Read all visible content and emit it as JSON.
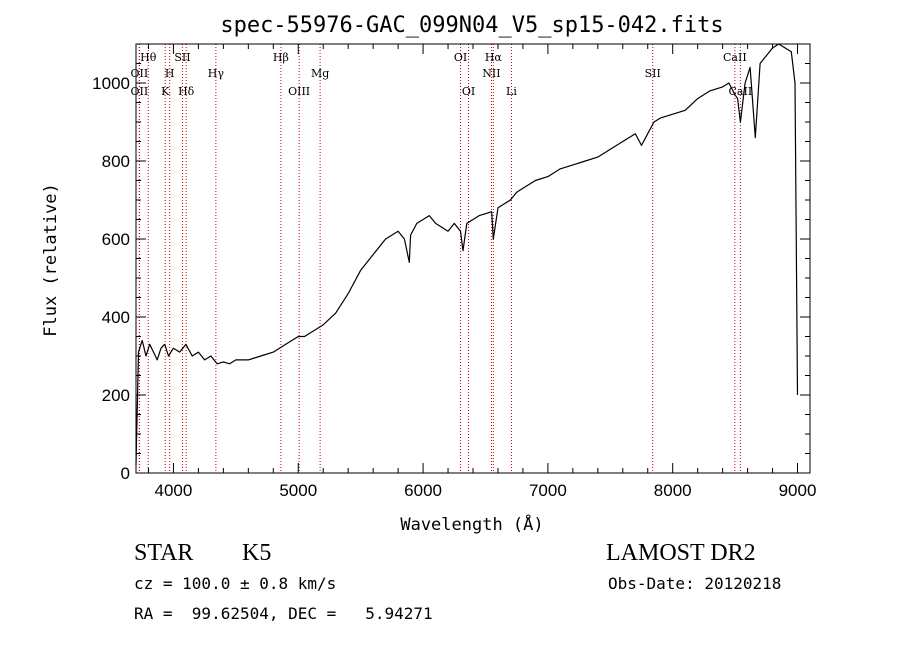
{
  "chart_data": {
    "type": "line",
    "title": "spec-55976-GAC_099N04_V5_sp15-042.fits",
    "xlabel": "Wavelength (Å)",
    "ylabel": "Flux (relative)",
    "xlim": [
      3700,
      9100
    ],
    "ylim": [
      0,
      1100
    ],
    "xticks": [
      4000,
      5000,
      6000,
      7000,
      8000,
      9000
    ],
    "yticks": [
      0,
      200,
      400,
      600,
      800,
      1000
    ],
    "line_color": "#000000",
    "marker_color": "#c00000",
    "series": [
      {
        "x": [
          3700,
          3720,
          3750,
          3780,
          3810,
          3840,
          3870,
          3900,
          3930,
          3960,
          4000,
          4050,
          4100,
          4150,
          4200,
          4250,
          4300,
          4350,
          4400,
          4450,
          4500,
          4600,
          4700,
          4800,
          4850,
          4900,
          4950,
          5000,
          5050,
          5100,
          5150,
          5200,
          5300,
          5400,
          5500,
          5600,
          5700,
          5800,
          5850,
          5890,
          5900,
          5950,
          6000,
          6050,
          6100,
          6150,
          6200,
          6250,
          6300,
          6320,
          6350,
          6400,
          6450,
          6500,
          6550,
          6563,
          6600,
          6650,
          6700,
          6750,
          6800,
          6900,
          7000,
          7100,
          7200,
          7300,
          7400,
          7500,
          7600,
          7650,
          7700,
          7750,
          7800,
          7850,
          7900,
          8000,
          8100,
          8200,
          8300,
          8400,
          8450,
          8498,
          8520,
          8542,
          8580,
          8620,
          8662,
          8700,
          8750,
          8800,
          8850,
          8900,
          8950,
          8980,
          9000
        ],
        "y": [
          20,
          310,
          340,
          300,
          330,
          310,
          290,
          320,
          330,
          300,
          320,
          310,
          330,
          300,
          310,
          290,
          300,
          280,
          285,
          280,
          290,
          290,
          300,
          310,
          320,
          330,
          340,
          350,
          350,
          360,
          370,
          380,
          410,
          460,
          520,
          560,
          600,
          620,
          600,
          540,
          610,
          640,
          650,
          660,
          640,
          630,
          620,
          640,
          620,
          570,
          640,
          650,
          660,
          665,
          670,
          600,
          680,
          690,
          700,
          720,
          730,
          750,
          760,
          780,
          790,
          800,
          810,
          830,
          850,
          860,
          870,
          840,
          870,
          900,
          910,
          920,
          930,
          960,
          980,
          990,
          1000,
          970,
          960,
          900,
          1000,
          1040,
          860,
          1050,
          1070,
          1090,
          1100,
          1090,
          1080,
          1000,
          200
        ]
      }
    ],
    "spectral_lines": [
      {
        "label": "Hθ",
        "x": 3798,
        "row": 1
      },
      {
        "label": "OII",
        "x": 3727,
        "row": 2
      },
      {
        "label": "OII",
        "x": 3727,
        "row": 3
      },
      {
        "label": "H",
        "x": 3970,
        "row": 2
      },
      {
        "label": "K",
        "x": 3934,
        "row": 3
      },
      {
        "label": "SII",
        "x": 4072,
        "row": 1
      },
      {
        "label": "Hδ",
        "x": 4102,
        "row": 3
      },
      {
        "label": "Hγ",
        "x": 4340,
        "row": 2
      },
      {
        "label": "Hβ",
        "x": 4861,
        "row": 1
      },
      {
        "label": "OIII",
        "x": 5007,
        "row": 3
      },
      {
        "label": "Mg",
        "x": 5175,
        "row": 2
      },
      {
        "label": "OI",
        "x": 6300,
        "row": 1
      },
      {
        "label": "OI",
        "x": 6364,
        "row": 3
      },
      {
        "label": "Hα",
        "x": 6563,
        "row": 1
      },
      {
        "label": "NII",
        "x": 6548,
        "row": 2
      },
      {
        "label": "Li",
        "x": 6708,
        "row": 3
      },
      {
        "label": "SII",
        "x": 7840,
        "row": 2
      },
      {
        "label": "CaII",
        "x": 8498,
        "row": 1
      },
      {
        "label": "CaII",
        "x": 8542,
        "row": 3
      }
    ]
  },
  "info": {
    "class": "STAR",
    "subclass": "K5",
    "survey": "LAMOST DR2",
    "cz": "cz = 100.0 ± 0.8 km/s",
    "obs_date": "Obs-Date: 20120218",
    "coords": "RA =  99.62504, DEC =   5.94271"
  }
}
